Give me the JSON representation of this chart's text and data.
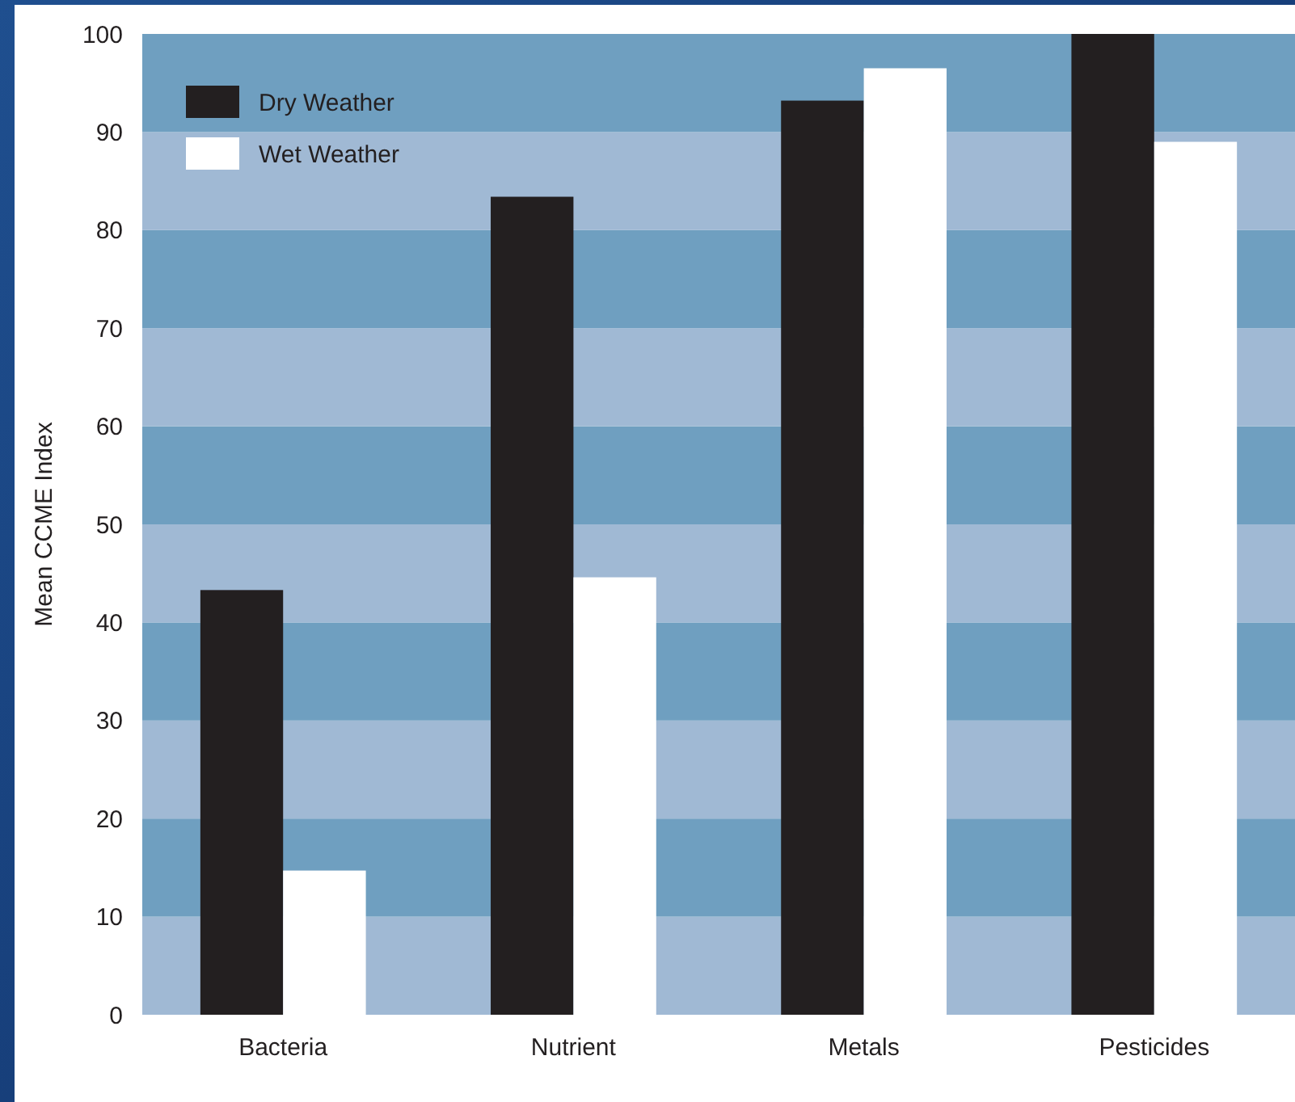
{
  "chart_data": {
    "type": "bar",
    "ylabel": "Mean CCME Index",
    "categories": [
      "Bacteria",
      "Nutrient",
      "Metals",
      "Pesticides"
    ],
    "series": [
      {
        "name": "Dry Weather",
        "color": "#231f20",
        "values": [
          43.3,
          83.4,
          93.2,
          100
        ]
      },
      {
        "name": "Wet Weather",
        "color": "#ffffff",
        "values": [
          14.7,
          44.6,
          96.5,
          89.0
        ]
      }
    ],
    "bands": [
      {
        "axis": "y",
        "from": 0,
        "to": 10,
        "color": "#a0b9d4"
      },
      {
        "axis": "y",
        "from": 10,
        "to": 20,
        "color": "#6f9fc0"
      },
      {
        "axis": "y",
        "from": 20,
        "to": 30,
        "color": "#a0b9d4"
      },
      {
        "axis": "y",
        "from": 30,
        "to": 40,
        "color": "#6f9fc0"
      },
      {
        "axis": "y",
        "from": 40,
        "to": 50,
        "color": "#a0b9d4"
      },
      {
        "axis": "y",
        "from": 50,
        "to": 60,
        "color": "#6f9fc0"
      },
      {
        "axis": "y",
        "from": 60,
        "to": 70,
        "color": "#a0b9d4"
      },
      {
        "axis": "y",
        "from": 70,
        "to": 80,
        "color": "#6f9fc0"
      },
      {
        "axis": "y",
        "from": 80,
        "to": 90,
        "color": "#a0b9d4"
      },
      {
        "axis": "y",
        "from": 90,
        "to": 100,
        "color": "#6f9fc0"
      }
    ],
    "ylim": [
      0,
      100
    ],
    "yticks": [
      0,
      10,
      20,
      30,
      40,
      50,
      60,
      70,
      80,
      90,
      100
    ],
    "legend": "top left"
  }
}
